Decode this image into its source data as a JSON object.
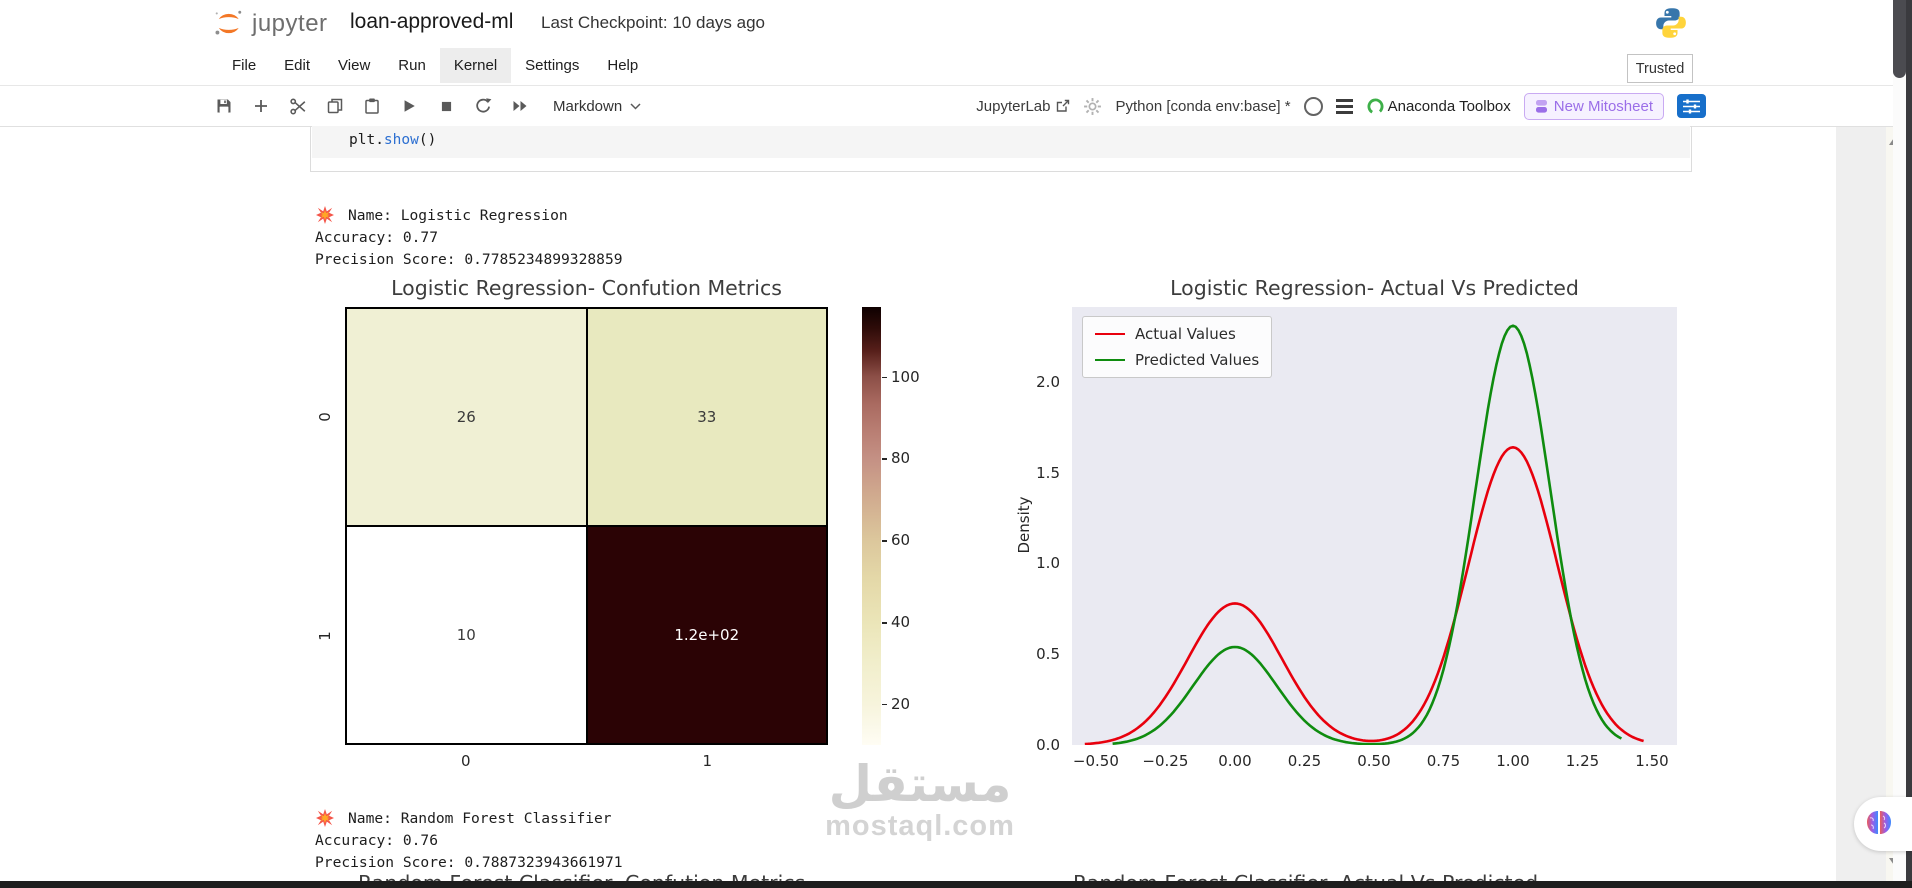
{
  "header": {
    "app_name": "jupyter",
    "title": "loan-approved-ml",
    "checkpoint": "Last Checkpoint: 10 days ago"
  },
  "menu": {
    "items": [
      {
        "label": "File"
      },
      {
        "label": "Edit"
      },
      {
        "label": "View"
      },
      {
        "label": "Run"
      },
      {
        "label": "Kernel",
        "active": true
      },
      {
        "label": "Settings"
      },
      {
        "label": "Help"
      }
    ],
    "trusted_label": "Trusted"
  },
  "toolbar": {
    "cell_type": "Markdown",
    "jupyterlab_label": "JupyterLab",
    "kernel_display": "Python [conda env:base] *",
    "anaconda_label": "Anaconda Toolbox",
    "mitosheet_label": "New Mitosheet"
  },
  "icons": {
    "save": "floppy-disk",
    "add": "plus",
    "cut": "scissors",
    "copy": "two-pages",
    "paste": "clipboard",
    "run": "play-triangle",
    "stop": "square",
    "restart": "circular-arrow",
    "run_all": "double-play",
    "burst": "red-collision-burst",
    "brain": "gradient-brain",
    "python": "python-two-snakes",
    "jupyter": "orange-broken-circle"
  },
  "cell": {
    "code_prefix": "plt.",
    "code_func": "show",
    "code_suffix": "()"
  },
  "outputs": [
    {
      "name_line": "Name: Logistic Regression",
      "accuracy": "Accuracy: 0.77",
      "precision": "Precision Score: 0.7785234899328859"
    },
    {
      "name_line": "Name: Random Forest Classifier",
      "accuracy": "Accuracy: 0.76",
      "precision": "Precision Score: 0.7887323943661971"
    }
  ],
  "bottom_titles": {
    "left": "Random Forest Classifier- Confution Metrics",
    "right": "Random Forest Classifier- Actual Vs Predicted"
  },
  "watermark": {
    "arabic": "مستقل",
    "latin": "mostaql.com"
  },
  "chart_data": [
    {
      "type": "heatmap",
      "title": "Logistic Regression- Confution Metrics",
      "x_tick_labels": [
        "0",
        "1"
      ],
      "y_tick_labels": [
        "0",
        "1"
      ],
      "matrix": [
        [
          26,
          33
        ],
        [
          10,
          117
        ]
      ],
      "cell_labels": [
        [
          "26",
          "33"
        ],
        [
          "10",
          "1.2e+02"
        ]
      ],
      "cell_colors": [
        [
          "#f0f0d4",
          "#e8e9bf"
        ],
        [
          "#ffffff",
          "#2b0305"
        ]
      ],
      "cell_text_colors": [
        [
          "#3a3a3a",
          "#3a3a3a"
        ],
        [
          "#3a3a3a",
          "#ffffff"
        ]
      ],
      "colorbar": {
        "vmin": 10,
        "vmax": 117,
        "ticks": [
          20,
          40,
          60,
          80,
          100
        ],
        "gradient": [
          [
            0,
            "#0e0000"
          ],
          [
            0.05,
            "#2f0c09"
          ],
          [
            0.1,
            "#571f1a"
          ],
          [
            0.159,
            "#8c4f47"
          ],
          [
            0.22,
            "#a96a60"
          ],
          [
            0.28,
            "#b87d72"
          ],
          [
            0.346,
            "#c49084"
          ],
          [
            0.42,
            "#cfa78d"
          ],
          [
            0.533,
            "#dcc79c"
          ],
          [
            0.62,
            "#e4d8a8"
          ],
          [
            0.72,
            "#ebe5b8"
          ],
          [
            0.81,
            "#f1eecb"
          ],
          [
            0.907,
            "#f7f4dc"
          ],
          [
            0.96,
            "#fbf9ea"
          ],
          [
            1,
            "#fffdf4"
          ]
        ]
      }
    },
    {
      "type": "line",
      "title": "Logistic Regression- Actual Vs Predicted",
      "ylabel": "Density",
      "background": "#eaeaf2",
      "xlim": [
        -0.586,
        1.59
      ],
      "ylim": [
        0,
        2.413
      ],
      "x_ticks": [
        -0.5,
        -0.25,
        0,
        0.25,
        0.5,
        0.75,
        1,
        1.25,
        1.5
      ],
      "x_tick_labels": [
        "−0.50",
        "−0.25",
        "0.00",
        "0.25",
        "0.50",
        "0.75",
        "1.00",
        "1.25",
        "1.50"
      ],
      "y_ticks": [
        0,
        0.5,
        1,
        1.5,
        2
      ],
      "y_tick_labels": [
        "0.0",
        "0.5",
        "1.0",
        "1.5",
        "2.0"
      ],
      "legend": {
        "position": "upper left",
        "entries": [
          {
            "label": "Actual Values",
            "color": "#e8000d"
          },
          {
            "label": "Predicted Values",
            "color": "#0f8c0f"
          }
        ]
      },
      "series": [
        {
          "name": "Actual Values",
          "color": "#e8000d",
          "x_range": [
            -0.54,
            1.47
          ],
          "components": [
            {
              "mu": 0.0,
              "peak": 0.78,
              "sigma": 0.17
            },
            {
              "mu": 1.0,
              "peak": 1.64,
              "sigma": 0.16
            }
          ]
        },
        {
          "name": "Predicted Values",
          "color": "#0f8c0f",
          "x_range": [
            -0.44,
            1.39
          ],
          "components": [
            {
              "mu": 0.0,
              "peak": 0.54,
              "sigma": 0.15
            },
            {
              "mu": 1.0,
              "peak": 2.31,
              "sigma": 0.135
            }
          ]
        }
      ]
    }
  ]
}
